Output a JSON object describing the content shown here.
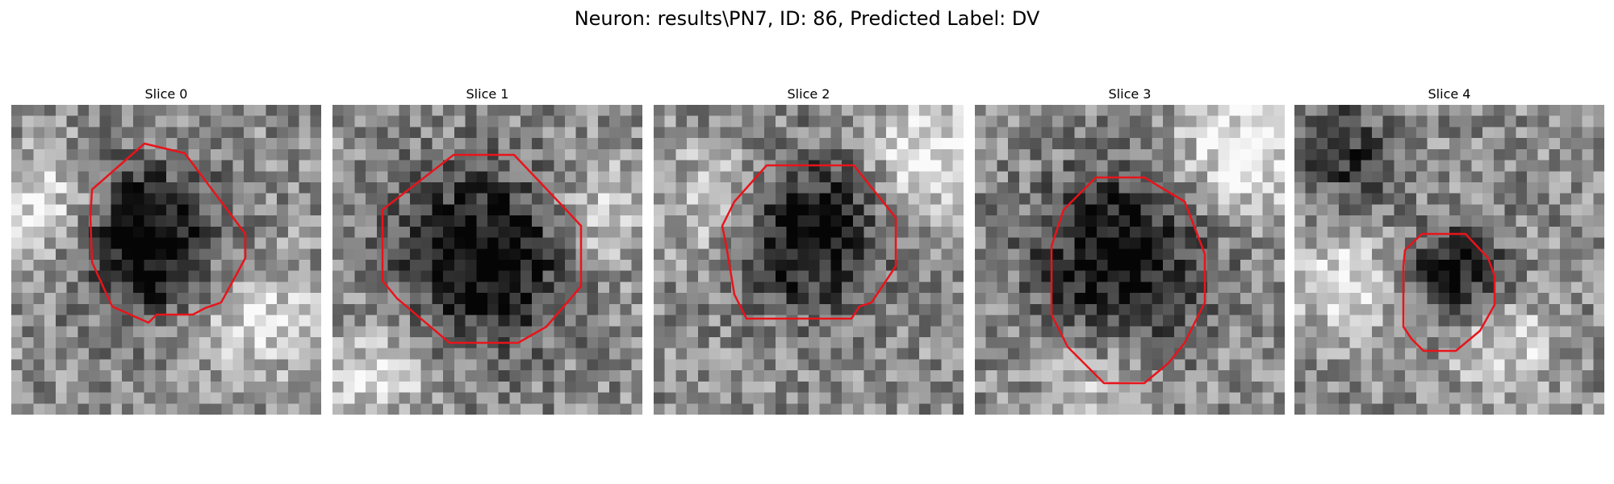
{
  "figure": {
    "title": "Neuron: results\\PN7, ID: 86, Predicted Label: DV"
  },
  "image_grid": {
    "cols": 28,
    "rows": 28
  },
  "contour_color": "#e8141b",
  "panels": [
    {
      "title": "Slice 0"
    },
    {
      "title": "Slice 1"
    },
    {
      "title": "Slice 2"
    },
    {
      "title": "Slice 3"
    },
    {
      "title": "Slice 4"
    }
  ]
}
